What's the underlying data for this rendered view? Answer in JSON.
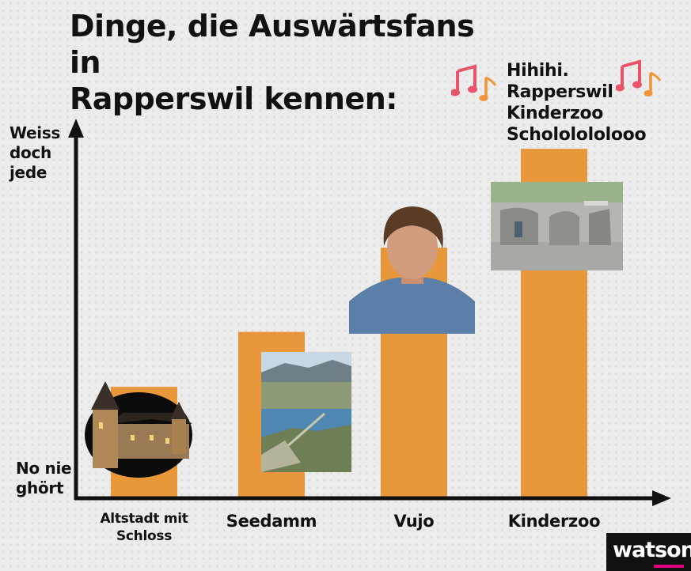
{
  "title": "Dinge, die Auswärtsfans in\nRapperswil kennen:",
  "caption": "Hihihi.\nRapperswil\nKinderzoo\nSchololololooo",
  "logo_text": "watson",
  "colors": {
    "bar": "#e8983a",
    "axis": "#111111",
    "note": "#e8546a",
    "logo_accent": "#e3007e"
  },
  "icons": {
    "note": "music-note-icon"
  },
  "chart_data": {
    "type": "bar",
    "title": "Dinge, die Auswärtsfans in Rapperswil kennen:",
    "xlabel": "",
    "ylabel": "",
    "y_scale": "qualitative",
    "y_low_label": "No nie\nghört",
    "y_high_label": "Weiss\ndoch\njede",
    "ylim": [
      0,
      100
    ],
    "categories": [
      "Altstadt mit\nSchloss",
      "Seedamm",
      "Vujo",
      "Kinderzoo"
    ],
    "values": [
      30,
      45,
      68,
      95
    ],
    "grid": false,
    "legend": "none"
  }
}
